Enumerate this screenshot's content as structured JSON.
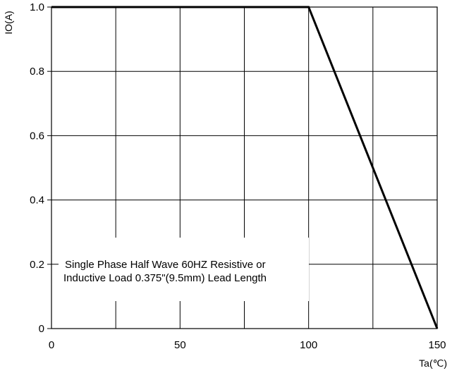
{
  "chart_data": {
    "type": "line",
    "xlabel": "Ta(℃)",
    "ylabel": "IO(A)",
    "xlim": [
      0,
      150
    ],
    "ylim": [
      0,
      1.0
    ],
    "x_ticks": [
      0,
      50,
      100,
      150
    ],
    "y_ticks": [
      0,
      0.2,
      0.4,
      0.6,
      0.8,
      1.0
    ],
    "x_tick_labels": [
      "0",
      "50",
      "100",
      "150"
    ],
    "y_tick_labels": [
      "0",
      "0.2",
      "0.4",
      "0.6",
      "0.8",
      "1.0"
    ],
    "grid": true,
    "series": [
      {
        "x": [
          0,
          100,
          150
        ],
        "y": [
          1.0,
          1.0,
          0
        ]
      }
    ],
    "annotation": {
      "lines": [
        "Single Phase Half Wave  60HZ Resistive or",
        "Inductive Load 0.375\"(9.5mm) Lead Length"
      ]
    }
  }
}
